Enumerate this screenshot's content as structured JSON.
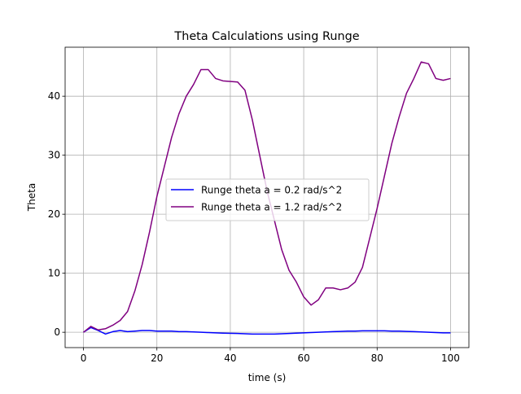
{
  "chart_data": {
    "type": "line",
    "title": "Theta Calculations using Runge",
    "x_label": "time (s)",
    "y_label": "Theta",
    "x": [
      0,
      2,
      4,
      6,
      8,
      10,
      12,
      14,
      16,
      18,
      20,
      22,
      24,
      26,
      28,
      30,
      32,
      34,
      36,
      38,
      42,
      44,
      46,
      48,
      50,
      52,
      54,
      56,
      58,
      60,
      62,
      64,
      66,
      68,
      70,
      72,
      74,
      76,
      78,
      80,
      82,
      84,
      86,
      88,
      90,
      92,
      94,
      96,
      98,
      100
    ],
    "series": [
      {
        "name": "Runge theta a = 0.2 rad/s^2",
        "color": "#0000ff",
        "values": [
          0,
          0.8,
          0.3,
          -0.3,
          0.1,
          0.3,
          0.1,
          0.2,
          0.3,
          0.3,
          0.2,
          0.2,
          0.2,
          0.1,
          0.1,
          0.05,
          0,
          -0.05,
          -0.1,
          -0.15,
          -0.2,
          -0.25,
          -0.3,
          -0.3,
          -0.3,
          -0.3,
          -0.25,
          -0.2,
          -0.15,
          -0.1,
          -0.05,
          0,
          0.05,
          0.1,
          0.15,
          0.2,
          0.2,
          0.25,
          0.25,
          0.25,
          0.25,
          0.2,
          0.2,
          0.15,
          0.1,
          0.05,
          0,
          -0.05,
          -0.1,
          -0.1
        ]
      },
      {
        "name": "Runge theta a = 1.2 rad/s^2",
        "color": "#800080",
        "values": [
          0,
          1,
          0.4,
          0.6,
          1.2,
          2,
          3.5,
          7,
          11.5,
          17,
          23,
          28,
          33,
          37,
          40,
          42,
          44.5,
          44.5,
          43,
          42.6,
          42.4,
          41,
          36,
          30,
          24,
          19,
          14,
          10.5,
          8.5,
          6,
          4.6,
          5.5,
          7.5,
          7.5,
          7.2,
          7.5,
          8.5,
          11,
          16,
          21,
          26.5,
          32,
          36.5,
          40.5,
          43,
          45.8,
          45.5,
          43,
          42.7,
          43
        ]
      }
    ],
    "xlim": [
      -5,
      105
    ],
    "ylim": [
      -2.6,
      48.3
    ],
    "xticks": [
      0,
      20,
      40,
      60,
      80,
      100
    ],
    "yticks": [
      0,
      10,
      20,
      30,
      40
    ],
    "grid": true,
    "legend": "center"
  }
}
